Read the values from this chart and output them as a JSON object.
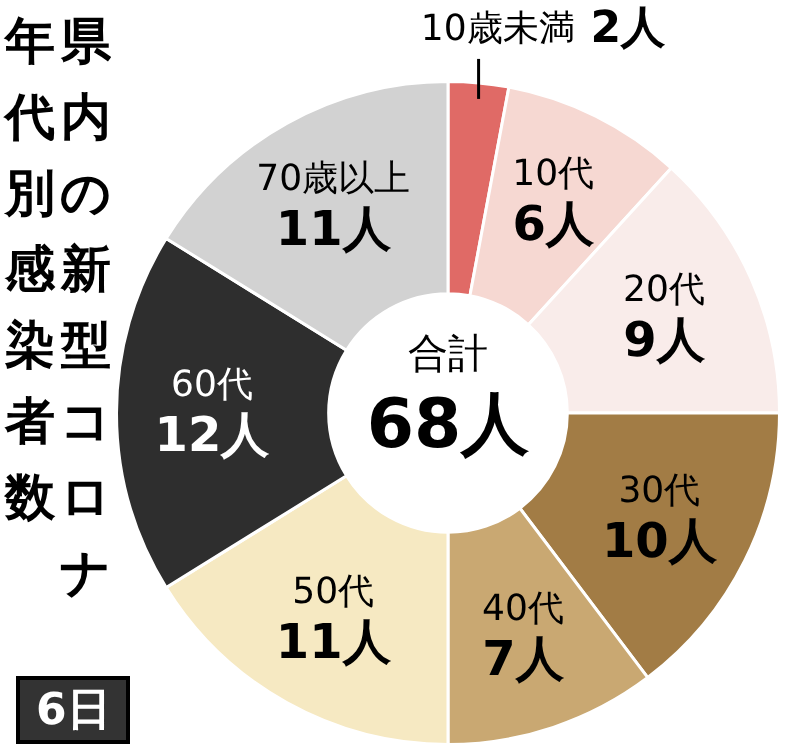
{
  "chart_data": {
    "type": "donut",
    "title": "県内の新型コロナ年代別感染者数",
    "categories": [
      "10歳未満",
      "10代",
      "20代",
      "30代",
      "40代",
      "50代",
      "60代",
      "70歳以上"
    ],
    "values": [
      2,
      6,
      9,
      10,
      7,
      11,
      12,
      11
    ],
    "value_labels": [
      "2人",
      "6人",
      "9人",
      "10人",
      "7人",
      "11人",
      "12人",
      "11人"
    ],
    "colors": [
      "#e06a66",
      "#f6d8d2",
      "#f9ecea",
      "#a27c45",
      "#c9a872",
      "#f6e9c2",
      "#2e2e2e",
      "#d2d2d2"
    ],
    "annotations": [
      "合計",
      "68人",
      "6日"
    ],
    "legend": false
  }
}
